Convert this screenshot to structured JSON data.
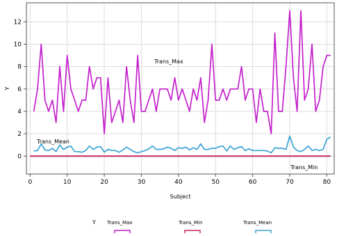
{
  "chart_data": {
    "type": "line",
    "xlabel": "Subject",
    "ylabel": "Y",
    "xlim": [
      -1,
      82
    ],
    "ylim": [
      -1.6,
      13.7
    ],
    "xticks": [
      0,
      10,
      20,
      30,
      40,
      50,
      60,
      70,
      80
    ],
    "yticks": [
      0,
      2,
      4,
      6,
      8,
      10,
      12
    ],
    "grid": true,
    "legend_position": "bottom",
    "legend_title": "Y",
    "annotations": [
      "Trans_Max",
      "Trans_Mean",
      "Trans_Min"
    ],
    "series": [
      {
        "name": "Trans_Max",
        "color": "#c41fcc",
        "x": [
          1,
          2,
          3,
          4,
          5,
          6,
          7,
          8,
          9,
          10,
          11,
          12,
          13,
          14,
          15,
          16,
          17,
          18,
          19,
          20,
          21,
          22,
          23,
          24,
          25,
          26,
          27,
          28,
          29,
          30,
          31,
          32,
          33,
          34,
          35,
          36,
          37,
          38,
          39,
          40,
          41,
          42,
          43,
          44,
          45,
          46,
          47,
          48,
          49,
          50,
          51,
          52,
          53,
          54,
          55,
          56,
          57,
          58,
          59,
          60,
          61,
          62,
          63,
          64,
          65,
          66,
          67,
          68,
          69,
          70,
          71,
          72,
          73,
          74,
          75,
          76,
          77,
          78,
          79,
          80,
          81
        ],
        "values": [
          4,
          6,
          10,
          5,
          4,
          5,
          3,
          8,
          4,
          9,
          6,
          5,
          4,
          5,
          5,
          8,
          6,
          7,
          7,
          2,
          7,
          3,
          4,
          5,
          3,
          8,
          5,
          3,
          9,
          4,
          4,
          5,
          6,
          4,
          6,
          6,
          6,
          5,
          7,
          5,
          6,
          5,
          4,
          6,
          5,
          7,
          3,
          5,
          10,
          5,
          5,
          6,
          5,
          6,
          6,
          6,
          8,
          5,
          6,
          6,
          3,
          6,
          4,
          4,
          2,
          11,
          4,
          4,
          8,
          13,
          7,
          4,
          13,
          5,
          6,
          10,
          4,
          5,
          8,
          9,
          9
        ]
      },
      {
        "name": "Trans_Min",
        "color": "#c8265b",
        "x": [
          0,
          81
        ],
        "values": [
          0,
          0
        ]
      },
      {
        "name": "Trans_Mean",
        "color": "#3aa2d4",
        "x": [
          1,
          2,
          3,
          4,
          5,
          6,
          7,
          8,
          9,
          10,
          11,
          12,
          13,
          14,
          15,
          16,
          17,
          18,
          19,
          20,
          21,
          22,
          23,
          24,
          25,
          26,
          27,
          28,
          29,
          30,
          31,
          32,
          33,
          34,
          35,
          36,
          37,
          38,
          39,
          40,
          41,
          42,
          43,
          44,
          45,
          46,
          47,
          48,
          49,
          50,
          51,
          52,
          53,
          54,
          55,
          56,
          57,
          58,
          59,
          60,
          61,
          62,
          63,
          64,
          65,
          66,
          67,
          68,
          69,
          70,
          71,
          72,
          73,
          74,
          75,
          76,
          77,
          78,
          79,
          80,
          81
        ],
        "values": [
          0.45,
          0.5,
          1.1,
          0.55,
          0.5,
          0.7,
          0.4,
          1.0,
          0.6,
          0.8,
          0.9,
          0.4,
          0.4,
          0.35,
          0.5,
          0.9,
          0.6,
          0.8,
          0.85,
          0.35,
          0.6,
          0.5,
          0.5,
          0.35,
          0.55,
          0.8,
          0.6,
          0.4,
          0.3,
          0.4,
          0.5,
          0.65,
          0.9,
          0.6,
          0.6,
          0.65,
          0.8,
          0.7,
          0.5,
          0.75,
          0.7,
          0.8,
          0.55,
          0.75,
          0.6,
          1.1,
          0.6,
          0.6,
          0.7,
          0.7,
          0.85,
          0.9,
          0.45,
          0.9,
          0.6,
          0.75,
          0.85,
          0.5,
          0.65,
          0.5,
          0.5,
          0.5,
          0.5,
          0.45,
          0.3,
          0.75,
          0.7,
          0.7,
          0.6,
          1.8,
          0.8,
          0.5,
          0.4,
          0.6,
          0.9,
          0.5,
          0.6,
          0.5,
          0.6,
          1.5,
          1.7
        ]
      }
    ]
  }
}
